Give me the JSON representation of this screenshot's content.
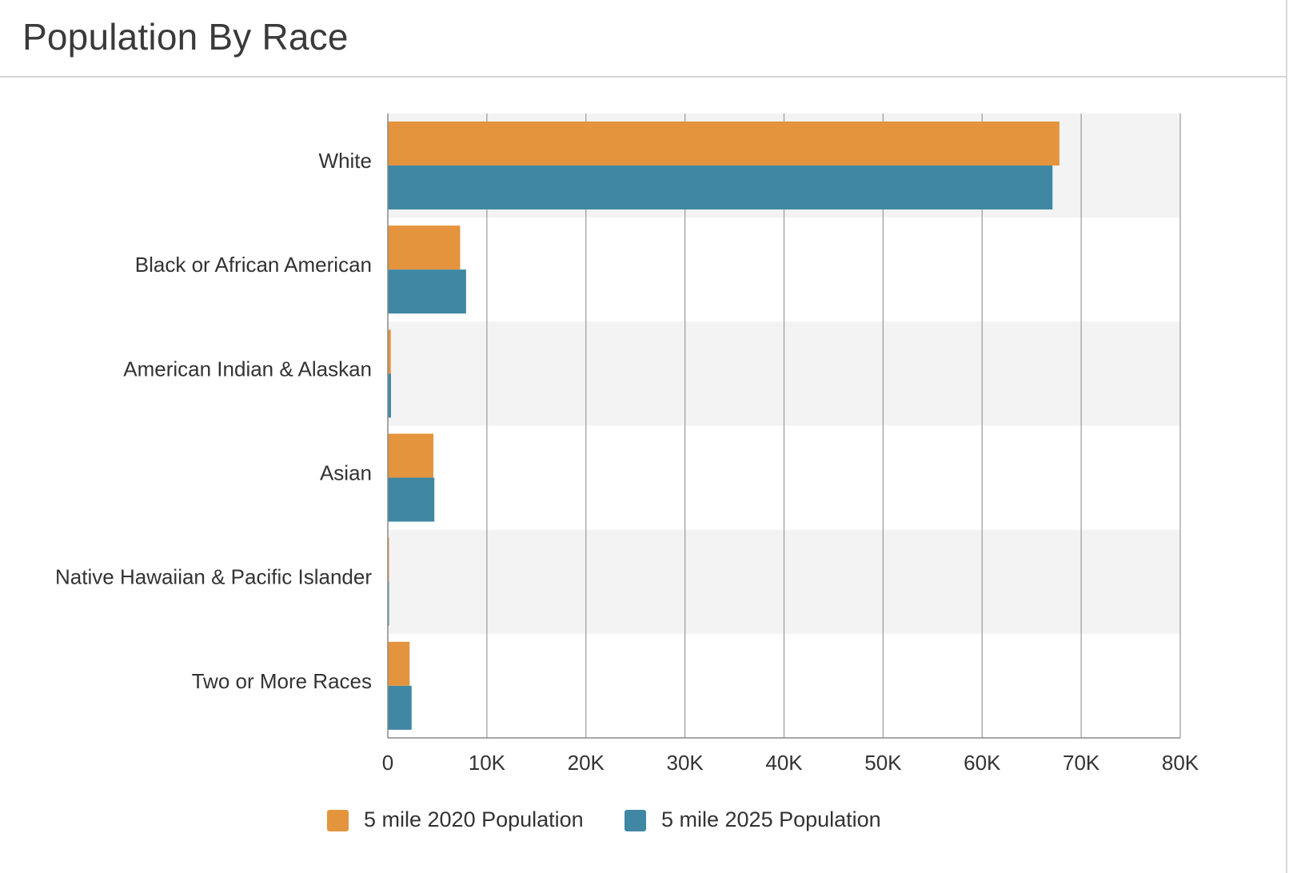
{
  "header": {
    "title": "Population By Race"
  },
  "colors": {
    "series_2020": "#e4943d",
    "series_2025": "#3f87a3",
    "band": "#f3f3f3",
    "grid": "#9a9a9a",
    "axis": "#8a8a8a"
  },
  "chart_data": {
    "type": "bar",
    "orientation": "horizontal",
    "title": "Population By Race",
    "xlabel": "",
    "ylabel": "",
    "categories": [
      "White",
      "Black or African American",
      "American Indian & Alaskan",
      "Asian",
      "Native Hawaiian & Pacific Islander",
      "Two or More Races"
    ],
    "series": [
      {
        "name": "5 mile 2020 Population",
        "color": "#e4943d",
        "values": [
          67800,
          7300,
          300,
          4600,
          80,
          2200
        ]
      },
      {
        "name": "5 mile 2025 Population",
        "color": "#3f87a3",
        "values": [
          67100,
          7900,
          320,
          4700,
          90,
          2400
        ]
      }
    ],
    "xlim": [
      0,
      80000
    ],
    "xticks": [
      0,
      10000,
      20000,
      30000,
      40000,
      50000,
      60000,
      70000,
      80000
    ],
    "xtick_labels": [
      "0",
      "10K",
      "20K",
      "30K",
      "40K",
      "50K",
      "60K",
      "70K",
      "80K"
    ],
    "grid": true,
    "legend": "bottom-center"
  }
}
